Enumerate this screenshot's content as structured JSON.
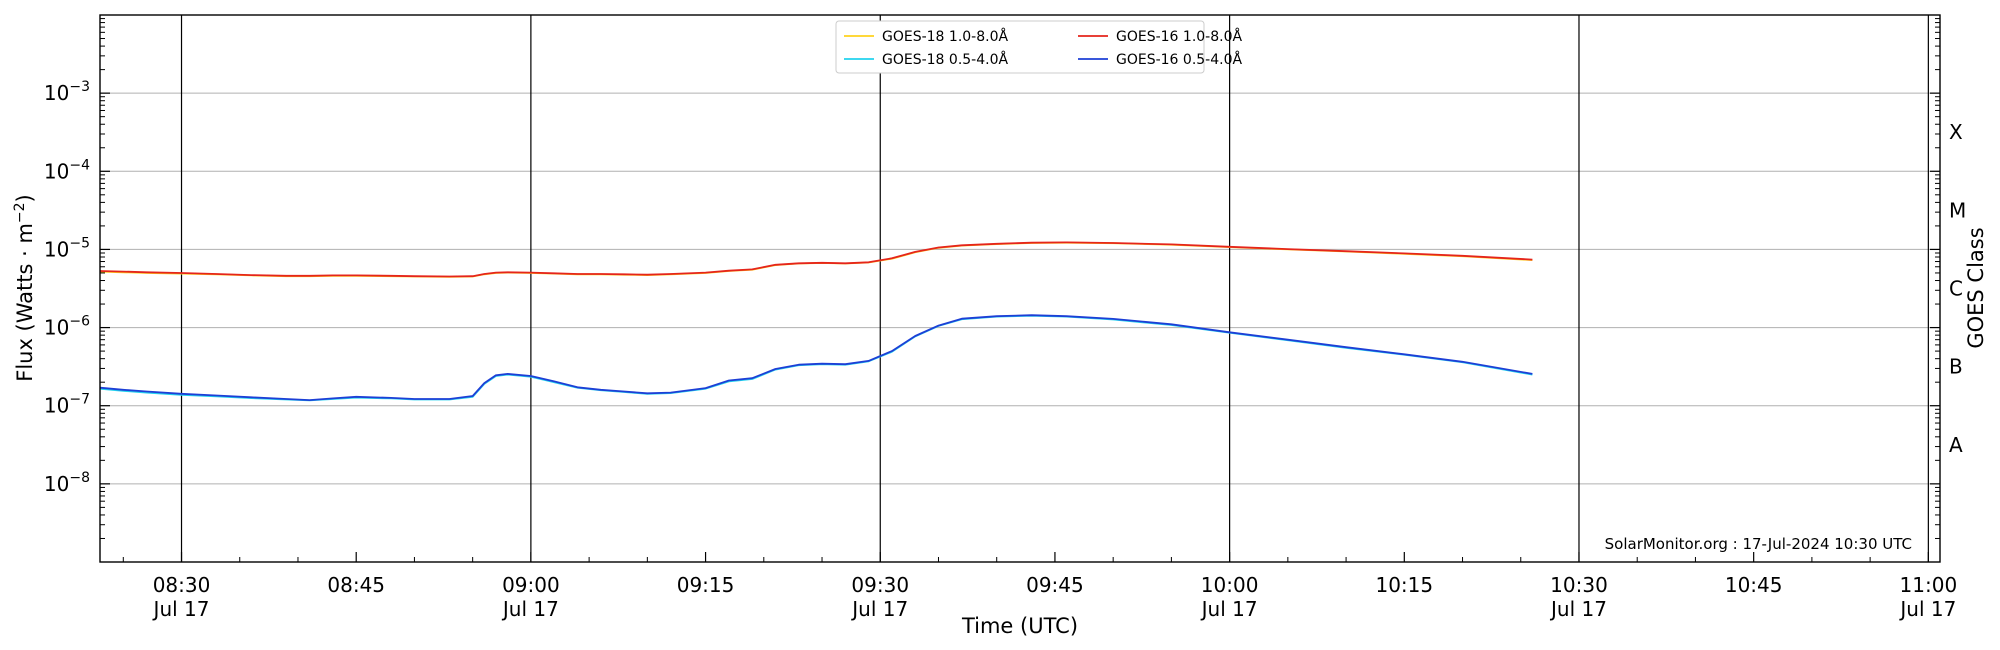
{
  "chart_data": {
    "type": "line",
    "title": "",
    "xlabel": "Time (UTC)",
    "ylabel": "Flux (Watts · m",
    "ylabel_sup": "−2",
    "ylabel_close": ")",
    "y2label": "GOES Class",
    "yscale": "log",
    "xlim": [
      "08:23",
      "11:01"
    ],
    "ylim": [
      1e-09,
      0.01
    ],
    "grid": "horizontal at decades",
    "legend_placement": "upper-center",
    "x_ticks": [
      {
        "time": "08:30",
        "line1": "08:30",
        "line2": "Jul 17"
      },
      {
        "time": "08:45",
        "line1": "08:45",
        "line2": ""
      },
      {
        "time": "09:00",
        "line1": "09:00",
        "line2": "Jul 17"
      },
      {
        "time": "09:15",
        "line1": "09:15",
        "line2": ""
      },
      {
        "time": "09:30",
        "line1": "09:30",
        "line2": "Jul 17"
      },
      {
        "time": "09:45",
        "line1": "09:45",
        "line2": ""
      },
      {
        "time": "10:00",
        "line1": "10:00",
        "line2": "Jul 17"
      },
      {
        "time": "10:15",
        "line1": "10:15",
        "line2": ""
      },
      {
        "time": "10:30",
        "line1": "10:30",
        "line2": "Jul 17"
      },
      {
        "time": "10:45",
        "line1": "10:45",
        "line2": ""
      },
      {
        "time": "11:00",
        "line1": "11:00",
        "line2": "Jul 17"
      }
    ],
    "vertical_lines": [
      "08:30",
      "09:00",
      "09:30",
      "10:00",
      "10:30",
      "11:00"
    ],
    "y_ticks": [
      {
        "value": 1e-08,
        "base": "10",
        "exp": "−8"
      },
      {
        "value": 1e-07,
        "base": "10",
        "exp": "−7"
      },
      {
        "value": 1e-06,
        "base": "10",
        "exp": "−6"
      },
      {
        "value": 1e-05,
        "base": "10",
        "exp": "−5"
      },
      {
        "value": 0.0001,
        "base": "10",
        "exp": "−4"
      },
      {
        "value": 0.001,
        "base": "10",
        "exp": "−3"
      }
    ],
    "goes_classes": [
      {
        "label": "A",
        "value": 3.16e-08
      },
      {
        "label": "B",
        "value": 3.16e-07
      },
      {
        "label": "C",
        "value": 3.16e-06
      },
      {
        "label": "M",
        "value": 3.16e-05
      },
      {
        "label": "X",
        "value": 0.000316
      }
    ],
    "annotation": "SolarMonitor.org : 17-Jul-2024 10:30 UTC",
    "x": [
      "08:23",
      "08:25",
      "08:27",
      "08:30",
      "08:33",
      "08:36",
      "08:39",
      "08:41",
      "08:43",
      "08:45",
      "08:48",
      "08:50",
      "08:53",
      "08:55",
      "08:56",
      "08:57",
      "08:58",
      "09:00",
      "09:02",
      "09:04",
      "09:06",
      "09:08",
      "09:10",
      "09:12",
      "09:15",
      "09:17",
      "09:19",
      "09:21",
      "09:23",
      "09:25",
      "09:27",
      "09:29",
      "09:31",
      "09:33",
      "09:35",
      "09:37",
      "09:40",
      "09:43",
      "09:46",
      "09:50",
      "09:55",
      "10:00",
      "10:05",
      "10:10",
      "10:15",
      "10:20",
      "10:26"
    ],
    "series": [
      {
        "name": "GOES-18 1.0-8.0Å",
        "color": "#ffd21e",
        "values": [
          5.2e-06,
          5.1e-06,
          5e-06,
          4.9e-06,
          4.8e-06,
          4.65e-06,
          4.55e-06,
          4.55e-06,
          4.6e-06,
          4.6e-06,
          4.55e-06,
          4.5e-06,
          4.45e-06,
          4.5e-06,
          4.8e-06,
          5e-06,
          5.05e-06,
          5e-06,
          4.9e-06,
          4.8e-06,
          4.8e-06,
          4.75e-06,
          4.7e-06,
          4.8e-06,
          5e-06,
          5.3e-06,
          5.5e-06,
          6.3e-06,
          6.6e-06,
          6.7e-06,
          6.6e-06,
          6.8e-06,
          7.6e-06,
          9.2e-06,
          1.05e-05,
          1.12e-05,
          1.17e-05,
          1.21e-05,
          1.22e-05,
          1.2e-05,
          1.15e-05,
          1.07e-05,
          1e-05,
          9.4e-06,
          8.8e-06,
          8.2e-06,
          7.3e-06
        ]
      },
      {
        "name": "GOES-18 0.5-4.0Å",
        "color": "#22d3ee",
        "values": [
          1.65e-07,
          1.55e-07,
          1.47e-07,
          1.38e-07,
          1.32e-07,
          1.25e-07,
          1.2e-07,
          1.17e-07,
          1.22e-07,
          1.27e-07,
          1.24e-07,
          1.2e-07,
          1.2e-07,
          1.3e-07,
          1.9e-07,
          2.4e-07,
          2.5e-07,
          2.35e-07,
          2e-07,
          1.7e-07,
          1.58e-07,
          1.5e-07,
          1.42e-07,
          1.45e-07,
          1.65e-07,
          2.05e-07,
          2.2e-07,
          2.9e-07,
          3.3e-07,
          3.4e-07,
          3.35e-07,
          3.7e-07,
          4.9e-07,
          7.7e-07,
          1.05e-06,
          1.28e-06,
          1.38e-06,
          1.42e-06,
          1.38e-06,
          1.27e-06,
          1.08e-06,
          8.6e-07,
          6.9e-07,
          5.5e-07,
          4.5e-07,
          3.6e-07,
          2.5e-07
        ]
      },
      {
        "name": "GOES-16 1.0-8.0Å",
        "color": "#e5251b",
        "values": [
          5.3e-06,
          5.2e-06,
          5.1e-06,
          5e-06,
          4.85e-06,
          4.7e-06,
          4.6e-06,
          4.6e-06,
          4.65e-06,
          4.65e-06,
          4.6e-06,
          4.55e-06,
          4.5e-06,
          4.55e-06,
          4.85e-06,
          5.05e-06,
          5.1e-06,
          5.05e-06,
          4.95e-06,
          4.85e-06,
          4.85e-06,
          4.8e-06,
          4.75e-06,
          4.85e-06,
          5.05e-06,
          5.35e-06,
          5.55e-06,
          6.35e-06,
          6.65e-06,
          6.75e-06,
          6.65e-06,
          6.85e-06,
          7.7e-06,
          9.3e-06,
          1.06e-05,
          1.13e-05,
          1.18e-05,
          1.22e-05,
          1.23e-05,
          1.21e-05,
          1.16e-05,
          1.08e-05,
          1.01e-05,
          9.5e-06,
          8.9e-06,
          8.3e-06,
          7.4e-06
        ]
      },
      {
        "name": "GOES-16 0.5-4.0Å",
        "color": "#1d3fd6",
        "values": [
          1.7e-07,
          1.6e-07,
          1.52e-07,
          1.42e-07,
          1.35e-07,
          1.28e-07,
          1.22e-07,
          1.18e-07,
          1.24e-07,
          1.3e-07,
          1.26e-07,
          1.22e-07,
          1.22e-07,
          1.33e-07,
          1.95e-07,
          2.45e-07,
          2.55e-07,
          2.4e-07,
          2.05e-07,
          1.72e-07,
          1.6e-07,
          1.52e-07,
          1.44e-07,
          1.47e-07,
          1.68e-07,
          2.1e-07,
          2.25e-07,
          2.95e-07,
          3.35e-07,
          3.45e-07,
          3.4e-07,
          3.75e-07,
          5e-07,
          7.8e-07,
          1.06e-06,
          1.3e-06,
          1.4e-06,
          1.44e-06,
          1.4e-06,
          1.29e-06,
          1.1e-06,
          8.7e-07,
          7e-07,
          5.6e-07,
          4.55e-07,
          3.65e-07,
          2.55e-07
        ]
      }
    ]
  }
}
